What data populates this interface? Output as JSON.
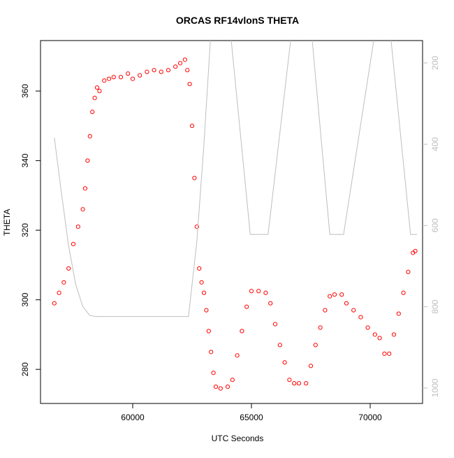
{
  "chart_data": {
    "type": "scatter",
    "title": "ORCAS RF14vlonS THETA",
    "x_label": "UTC Seconds",
    "y_label": "THETA",
    "xlim": [
      56118,
      72206
    ],
    "xticks": [
      60000,
      65000,
      70000
    ],
    "ylim": [
      270.2,
      374.5
    ],
    "yticks": [
      280,
      300,
      320,
      340,
      360
    ],
    "y2lim": [
      1038,
      145
    ],
    "y2ticks": [
      200,
      400,
      600,
      800,
      1000
    ],
    "series": [
      {
        "color": "#ff0000",
        "x": [
          56700,
          56900,
          57100,
          57300,
          57500,
          57700,
          57900,
          58000,
          58100,
          58200,
          58300,
          58400,
          58500,
          58600,
          58800,
          59000,
          59200,
          59500,
          59800,
          60000,
          60300,
          60600,
          60900,
          61200,
          61500,
          61800,
          62000,
          62200,
          62300,
          62400,
          62500,
          62600,
          62700,
          62800,
          62900,
          63000,
          63100,
          63200,
          63300,
          63400,
          63500,
          63700,
          64000,
          64200,
          64400,
          64600,
          64800,
          65000,
          65300,
          65600,
          65800,
          66000,
          66200,
          66400,
          66600,
          66800,
          67000,
          67300,
          67500,
          67700,
          67900,
          68100,
          68300,
          68500,
          68800,
          69000,
          69300,
          69600,
          69900,
          70200,
          70400,
          70600,
          70800,
          71000,
          71200,
          71400,
          71600,
          71800,
          71900
        ],
        "values": [
          299,
          302,
          305,
          309,
          316,
          321,
          326,
          332,
          340,
          347,
          354,
          358,
          361,
          360,
          363,
          363.5,
          364,
          364,
          365,
          363.5,
          364.5,
          365.5,
          366,
          365.5,
          366,
          367,
          368,
          369,
          366,
          362,
          350,
          335,
          321,
          309,
          305,
          302,
          297,
          291,
          285,
          279,
          275,
          274.5,
          275,
          277,
          284,
          291,
          298,
          302.5,
          302.5,
          302,
          299,
          293,
          287,
          282,
          277,
          276,
          276,
          276,
          281,
          287,
          292,
          297,
          301,
          301.5,
          301.5,
          299,
          297,
          295,
          292,
          290,
          289,
          284.5,
          284.5,
          290,
          296,
          302,
          308,
          313.5,
          314
        ]
      },
      {
        "color": "#bebebe",
        "axis": "y2",
        "x": [
          56700,
          57000,
          57300,
          57600,
          57900,
          58200,
          58500,
          62350,
          62700,
          63000,
          63270,
          63700,
          64150,
          64950,
          65700,
          66650,
          67200,
          67560,
          68300,
          68880,
          70150,
          70500,
          70880,
          71700,
          71970
        ],
        "values": [
          384,
          520,
          650,
          745,
          800,
          822,
          824,
          824,
          640,
          400,
          145,
          null,
          145,
          622,
          622,
          145,
          null,
          145,
          622,
          622,
          145,
          null,
          145,
          622,
          622
        ]
      }
    ]
  }
}
